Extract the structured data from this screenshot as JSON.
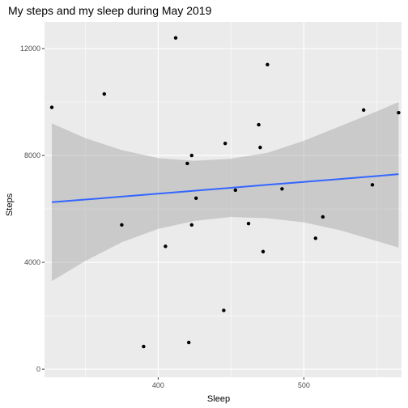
{
  "chart_data": {
    "type": "scatter",
    "title": "My steps and my sleep during May 2019",
    "xlabel": "Sleep",
    "ylabel": "Steps",
    "xlim": [
      322,
      567
    ],
    "ylim": [
      -300,
      13000
    ],
    "x_ticks": [
      400,
      500
    ],
    "x_minor_ticks": [
      350,
      450,
      550
    ],
    "y_ticks": [
      0,
      4000,
      8000,
      12000
    ],
    "y_minor_ticks": [
      2000,
      6000,
      10000
    ],
    "grid": true,
    "panel_background": "#ebebeb",
    "point_color": "#000000",
    "smooth": {
      "method": "linear",
      "color": "#3366ff",
      "band_color": "#999999",
      "x": [
        327,
        350,
        375,
        400,
        425,
        450,
        475,
        500,
        525,
        550,
        565
      ],
      "y": [
        6250,
        6350,
        6460,
        6570,
        6680,
        6790,
        6900,
        7010,
        7120,
        7230,
        7300
      ],
      "lower": [
        3300,
        4050,
        4750,
        5250,
        5550,
        5700,
        5650,
        5500,
        5200,
        4800,
        4550
      ],
      "upper": [
        9200,
        8650,
        8200,
        7900,
        7800,
        7880,
        8100,
        8550,
        9100,
        9650,
        10000
      ]
    },
    "points": [
      {
        "x": 327,
        "y": 9800
      },
      {
        "x": 363,
        "y": 10300
      },
      {
        "x": 375,
        "y": 5400
      },
      {
        "x": 390,
        "y": 850
      },
      {
        "x": 405,
        "y": 4600
      },
      {
        "x": 412,
        "y": 12400
      },
      {
        "x": 420,
        "y": 7700
      },
      {
        "x": 421,
        "y": 1000
      },
      {
        "x": 423,
        "y": 8000
      },
      {
        "x": 423,
        "y": 5400
      },
      {
        "x": 426,
        "y": 6400
      },
      {
        "x": 445,
        "y": 2200
      },
      {
        "x": 446,
        "y": 8450
      },
      {
        "x": 453,
        "y": 6700
      },
      {
        "x": 462,
        "y": 5450
      },
      {
        "x": 469,
        "y": 9150
      },
      {
        "x": 470,
        "y": 8300
      },
      {
        "x": 472,
        "y": 4400
      },
      {
        "x": 475,
        "y": 11400
      },
      {
        "x": 485,
        "y": 6750
      },
      {
        "x": 508,
        "y": 4900
      },
      {
        "x": 513,
        "y": 5700
      },
      {
        "x": 541,
        "y": 9700
      },
      {
        "x": 547,
        "y": 6900
      },
      {
        "x": 565,
        "y": 9600
      }
    ]
  }
}
